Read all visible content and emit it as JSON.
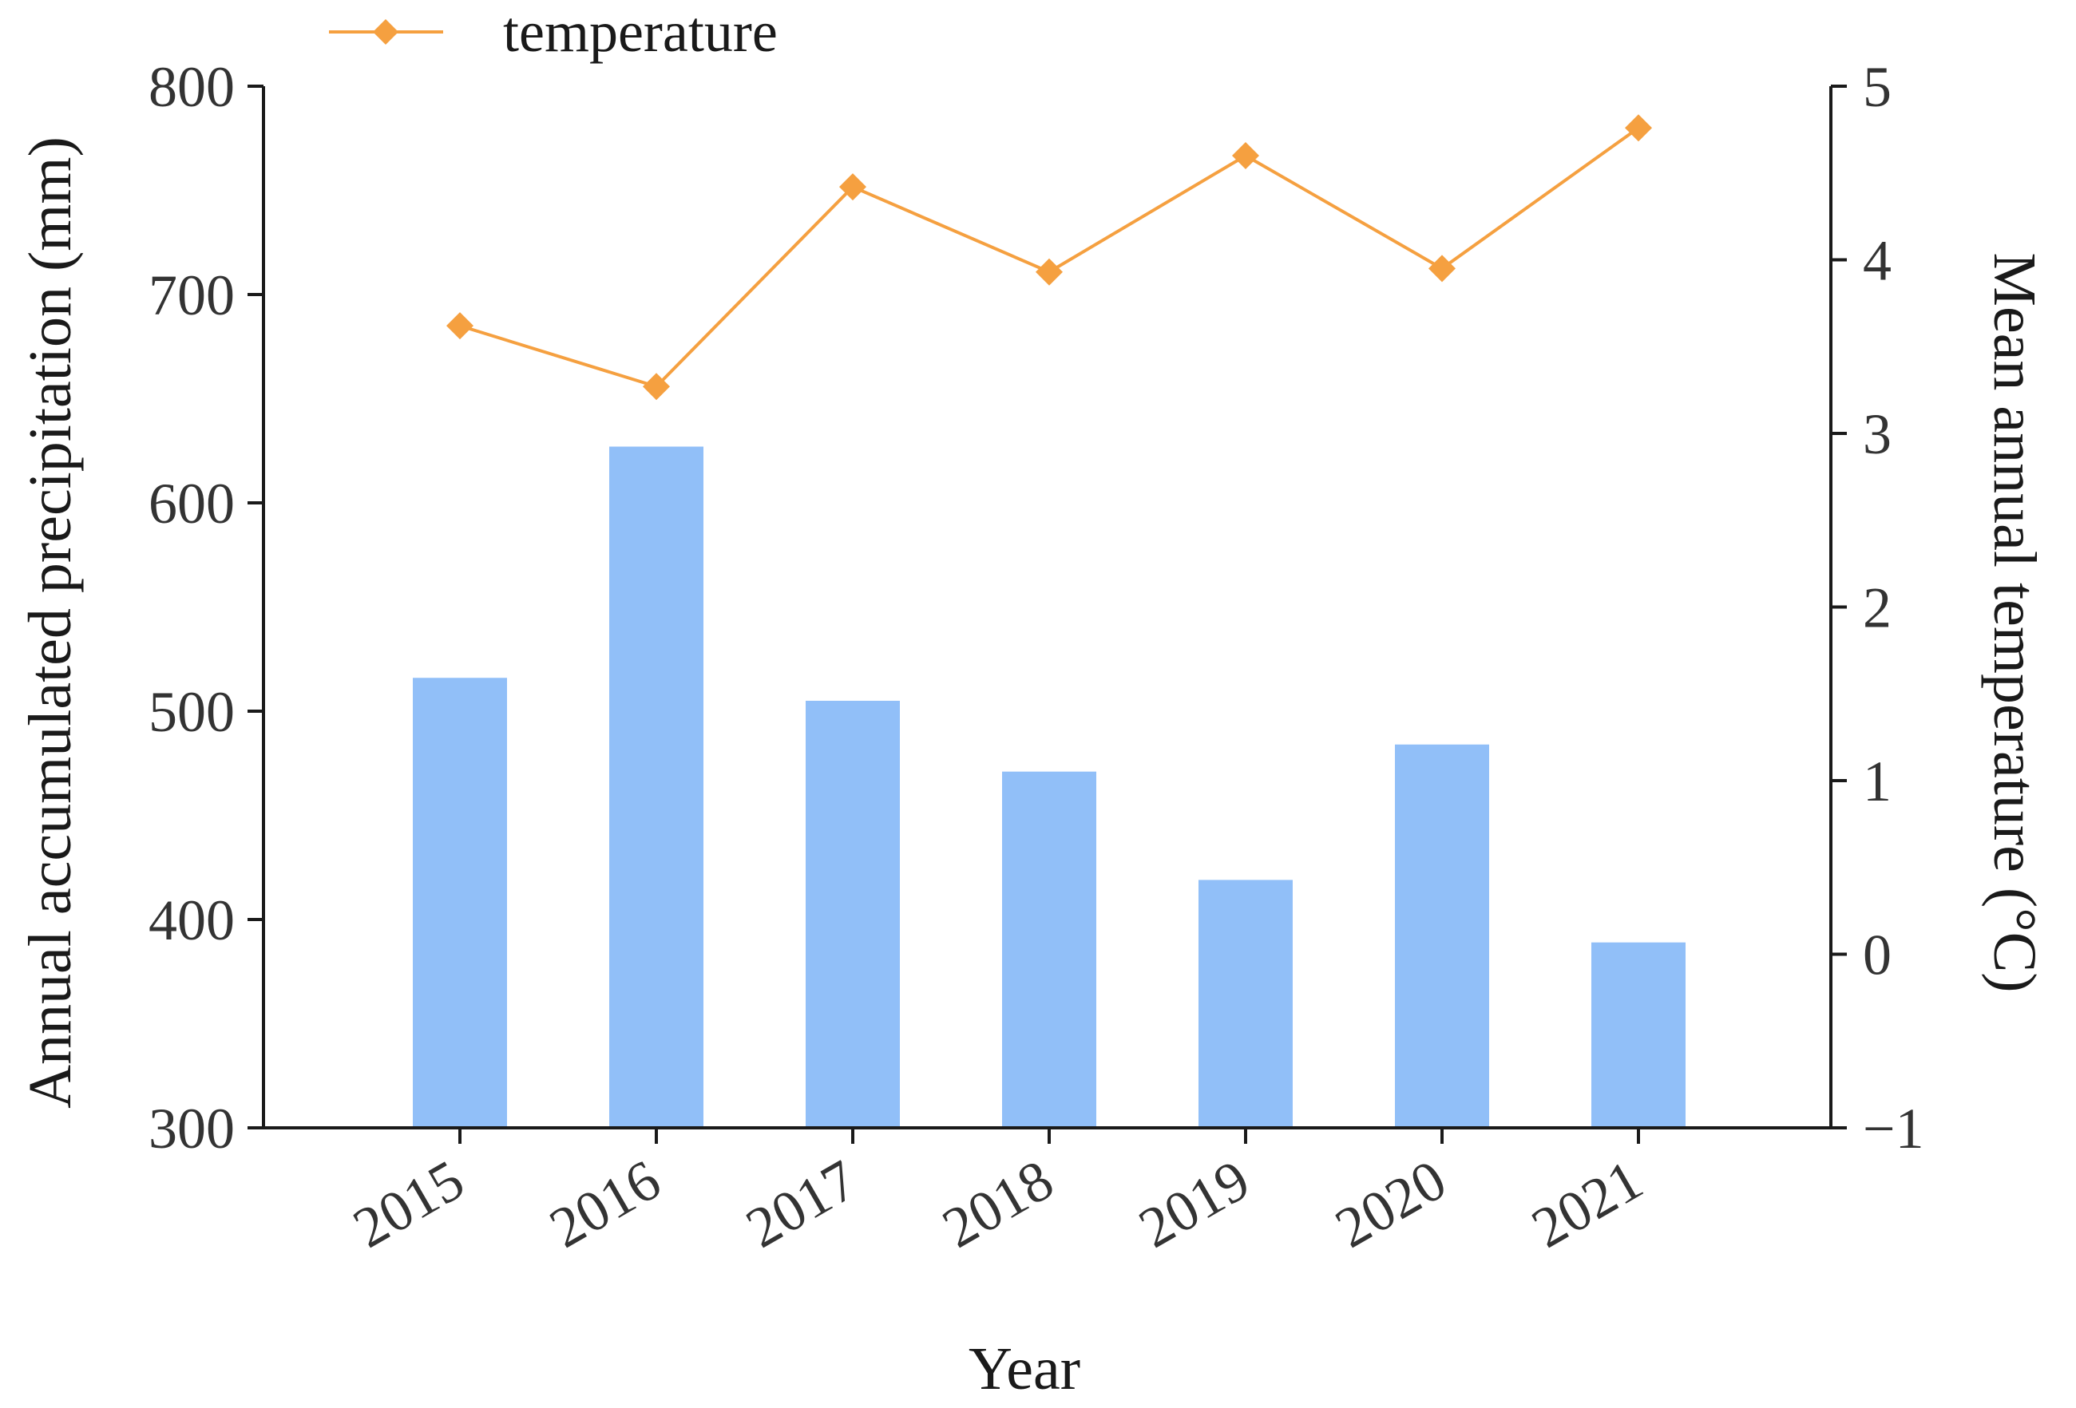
{
  "chart_data": {
    "type": "bar+line",
    "categories": [
      "2015",
      "2016",
      "2017",
      "2018",
      "2019",
      "2020",
      "2021"
    ],
    "xlabel": "Year",
    "bar_series": {
      "name": "precipitation",
      "values": [
        516,
        627,
        505,
        471,
        419,
        484,
        389
      ],
      "color": "#91bff8"
    },
    "line_series": {
      "name": "temperature",
      "values": [
        3.62,
        3.27,
        4.42,
        3.93,
        4.6,
        3.95,
        4.76
      ],
      "color": "#f5a040",
      "marker": "diamond"
    },
    "y_left": {
      "label": "Annual accumulated precipitation (mm)",
      "range": [
        300,
        800
      ],
      "ticks": [
        300,
        400,
        500,
        600,
        700,
        800
      ]
    },
    "y_right": {
      "label": "Mean annual temperature (°C)",
      "range": [
        -1,
        5
      ],
      "ticks": [
        -1,
        0,
        1,
        2,
        3,
        4,
        5
      ],
      "tick_labels": [
        "−1",
        "0",
        "1",
        "2",
        "3",
        "4",
        "5"
      ]
    },
    "legend": {
      "label": "temperature",
      "position": "top-left"
    }
  }
}
